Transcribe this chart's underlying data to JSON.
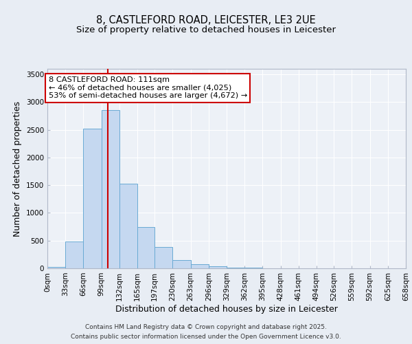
{
  "title1": "8, CASTLEFORD ROAD, LEICESTER, LE3 2UE",
  "title2": "Size of property relative to detached houses in Leicester",
  "xlabel": "Distribution of detached houses by size in Leicester",
  "ylabel": "Number of detached properties",
  "bin_edges": [
    0,
    33,
    66,
    99,
    132,
    165,
    197,
    230,
    263,
    296,
    329,
    362,
    395,
    428,
    461,
    494,
    526,
    559,
    592,
    625,
    658
  ],
  "bar_heights": [
    20,
    480,
    2520,
    2860,
    1530,
    750,
    380,
    145,
    75,
    40,
    15,
    10,
    5,
    5,
    5,
    2,
    1,
    0,
    0,
    0
  ],
  "bar_color": "#c5d8f0",
  "bar_edge_color": "#6aaad4",
  "property_size": 111,
  "vline_color": "#cc0000",
  "annotation_line1": "8 CASTLEFORD ROAD: 111sqm",
  "annotation_line2": "← 46% of detached houses are smaller (4,025)",
  "annotation_line3": "53% of semi-detached houses are larger (4,672) →",
  "annotation_box_color": "#ffffff",
  "annotation_box_edge_color": "#cc0000",
  "ylim": [
    0,
    3600
  ],
  "yticks": [
    0,
    500,
    1000,
    1500,
    2000,
    2500,
    3000,
    3500
  ],
  "bg_color": "#e8edf4",
  "plot_bg_color": "#edf1f7",
  "title_fontsize": 10.5,
  "subtitle_fontsize": 9.5,
  "axis_label_fontsize": 9,
  "tick_label_fontsize": 7.5,
  "footer_text1": "Contains HM Land Registry data © Crown copyright and database right 2025.",
  "footer_text2": "Contains public sector information licensed under the Open Government Licence v3.0."
}
